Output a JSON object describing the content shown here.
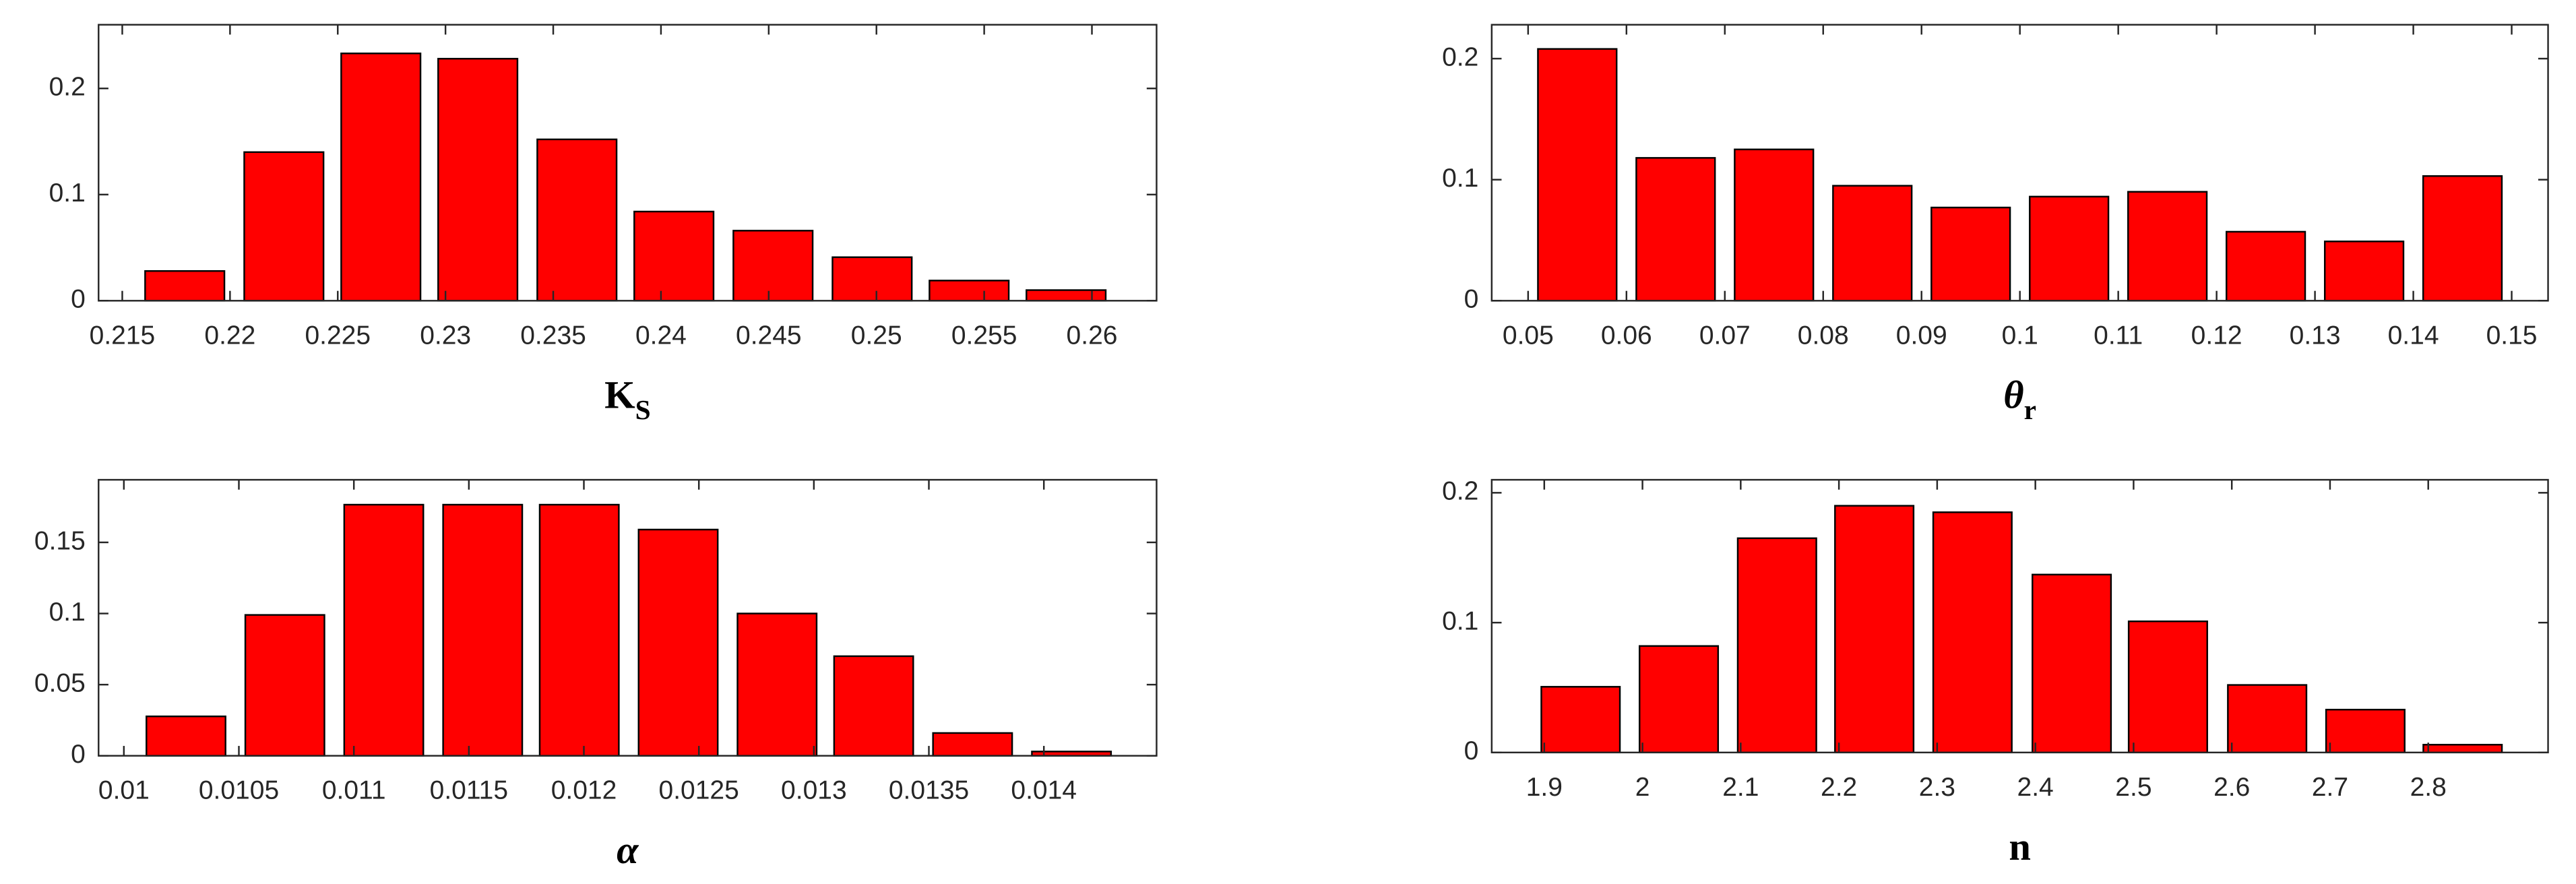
{
  "chart_data": [
    {
      "type": "bar",
      "xlabel": {
        "text": "K",
        "subscript": "S"
      },
      "color": "#ff0000",
      "x": [
        0.2179,
        0.2225,
        0.227,
        0.2315,
        0.2361,
        0.2406,
        0.2452,
        0.2498,
        0.2543,
        0.2588
      ],
      "values": [
        0.028,
        0.14,
        0.233,
        0.228,
        0.152,
        0.084,
        0.066,
        0.041,
        0.019,
        0.01
      ],
      "xlim": [
        0.2139,
        0.263
      ],
      "xticks": [
        0.215,
        0.22,
        0.225,
        0.23,
        0.235,
        0.24,
        0.245,
        0.25,
        0.255,
        0.26
      ],
      "ylim": [
        0,
        0.26
      ],
      "yticks": [
        0,
        0.1,
        0.2
      ],
      "grid": false
    },
    {
      "type": "bar",
      "xlabel": {
        "text": "θ",
        "subscript": "r"
      },
      "color": "#ff0000",
      "x": [
        0.055,
        0.065,
        0.075,
        0.085,
        0.095,
        0.105,
        0.115,
        0.125,
        0.135,
        0.145
      ],
      "values": [
        0.208,
        0.118,
        0.125,
        0.095,
        0.077,
        0.086,
        0.09,
        0.057,
        0.049,
        0.103
      ],
      "xlim": [
        0.0463,
        0.1537
      ],
      "xticks": [
        0.05,
        0.06,
        0.07,
        0.08,
        0.09,
        0.1,
        0.11,
        0.12,
        0.13,
        0.14,
        0.15
      ],
      "ylim": [
        0,
        0.228
      ],
      "yticks": [
        0,
        0.1,
        0.2
      ],
      "grid": false
    },
    {
      "type": "bar",
      "xlabel": {
        "text": "α"
      },
      "color": "#ff0000",
      "x": [
        0.01027,
        0.0107,
        0.01113,
        0.01156,
        0.01198,
        0.01241,
        0.01284,
        0.01326,
        0.01369,
        0.01412
      ],
      "values": [
        0.0277,
        0.099,
        0.1765,
        0.1765,
        0.1765,
        0.159,
        0.1,
        0.07,
        0.016,
        0.003
      ],
      "xlim": [
        0.00989,
        0.01449
      ],
      "xticks": [
        0.01,
        0.0105,
        0.011,
        0.0115,
        0.012,
        0.0125,
        0.013,
        0.0135,
        0.014
      ],
      "ylim": [
        0,
        0.194
      ],
      "yticks": [
        0,
        0.05,
        0.1,
        0.15
      ],
      "grid": false
    },
    {
      "type": "bar",
      "xlabel": {
        "text": "n"
      },
      "color": "#ff0000",
      "x": [
        1.937,
        2.037,
        2.137,
        2.236,
        2.336,
        2.437,
        2.535,
        2.636,
        2.736,
        2.835
      ],
      "values": [
        0.0506,
        0.082,
        0.165,
        0.19,
        0.185,
        0.137,
        0.101,
        0.052,
        0.033,
        0.006
      ],
      "xlim": [
        1.8465,
        2.922
      ],
      "xticks": [
        1.9,
        2,
        2.1,
        2.2,
        2.3,
        2.4,
        2.5,
        2.6,
        2.7,
        2.8
      ],
      "ylim": [
        0,
        0.21
      ],
      "yticks": [
        0,
        0.1,
        0.2
      ],
      "grid": false
    }
  ]
}
